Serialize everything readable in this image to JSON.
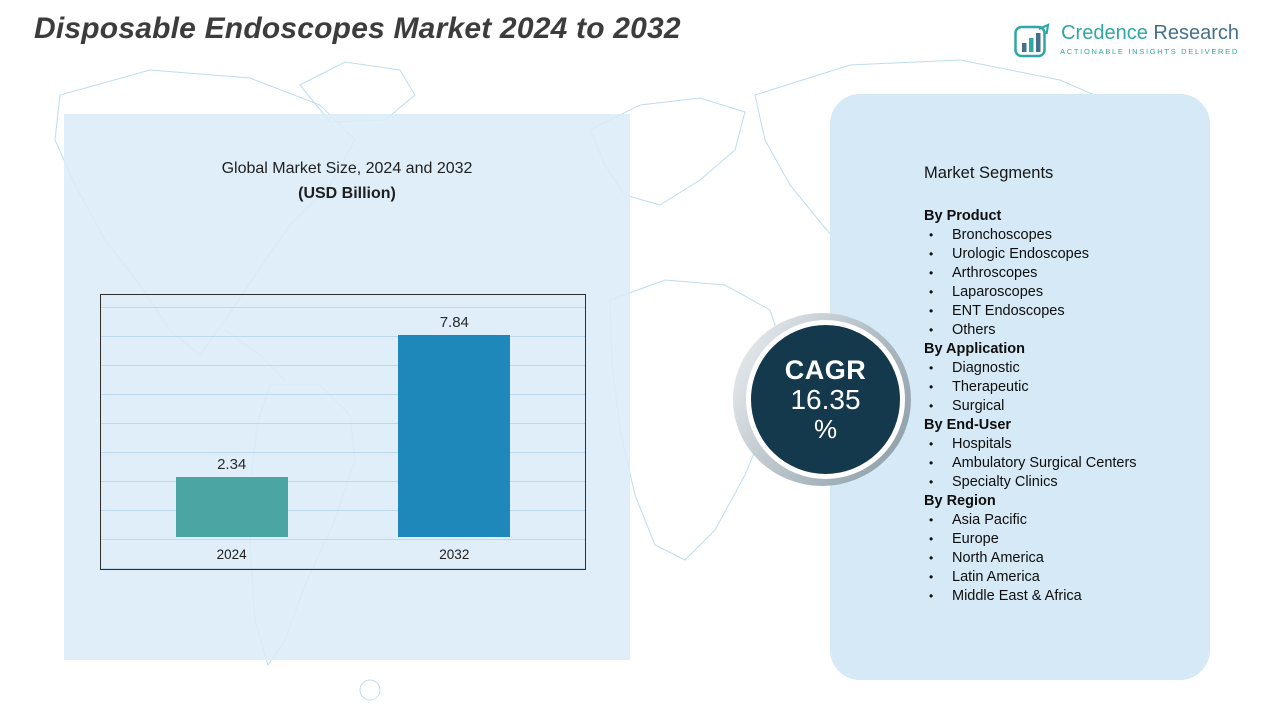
{
  "page": {
    "title": "Disposable Endoscopes Market 2024 to 2032"
  },
  "logo": {
    "brand_first": "Credence",
    "brand_second": "Research",
    "tagline": "Actionable Insights Delivered"
  },
  "chart_data": {
    "type": "bar",
    "title": "Global Market Size, 2024 and 2032",
    "subtitle": "(USD Billion)",
    "categories": [
      "2024",
      "2032"
    ],
    "values": [
      2.34,
      7.84
    ],
    "value_labels": [
      "2.34",
      "7.84"
    ],
    "xlabel": "",
    "ylabel": "",
    "ylim": [
      0,
      9
    ],
    "grid": true,
    "legend": "none",
    "bar_colors": [
      "#4ba5a3",
      "#1f88ba"
    ]
  },
  "cagr": {
    "label": "CAGR",
    "value": "16.35",
    "unit": "%"
  },
  "segments": {
    "title": "Market Segments",
    "groups": [
      {
        "heading": "By Product",
        "items": [
          "Bronchoscopes",
          "Urologic Endoscopes",
          "Arthroscopes",
          "Laparoscopes",
          "ENT Endoscopes",
          "Others"
        ]
      },
      {
        "heading": "By Application",
        "items": [
          "Diagnostic",
          "Therapeutic",
          "Surgical"
        ]
      },
      {
        "heading": "By End-User",
        "items": [
          "Hospitals",
          "Ambulatory Surgical Centers",
          "Specialty Clinics"
        ]
      },
      {
        "heading": "By Region",
        "items": [
          "Asia Pacific",
          "Europe",
          "North America",
          "Latin America",
          "Middle East & Africa"
        ]
      }
    ]
  },
  "colors": {
    "title_text": "#3c3c3c",
    "panel_bg": "#dbecf7",
    "cagr_circle_bg": "#14394c",
    "bar_2024": "#4ba5a3",
    "bar_2032": "#1f88ba",
    "map_line": "#b3d7e9",
    "brand_teal": "#2fa7a4",
    "brand_slate": "#44708d"
  }
}
